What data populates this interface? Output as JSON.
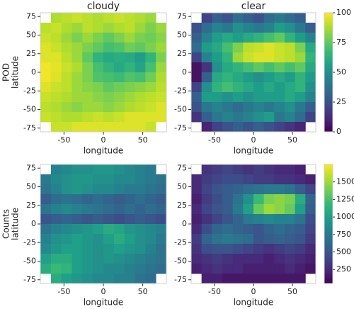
{
  "chart_data": [
    {
      "type": "heatmap",
      "title": "cloudy",
      "row_label": "POD",
      "x_label": "longitude",
      "y_label": "latitude",
      "colormap": "viridis",
      "xlim": [
        -80,
        80
      ],
      "ylim": [
        -80,
        80
      ],
      "xticks": [
        -50,
        0,
        50
      ],
      "yticks": [
        -75,
        -50,
        -25,
        0,
        25,
        50,
        75
      ],
      "zlim": [
        0,
        100
      ],
      "z": [
        [
          null,
          88,
          90,
          92,
          90,
          88,
          90,
          92,
          90,
          88,
          85,
          null
        ],
        [
          90,
          92,
          88,
          85,
          90,
          88,
          85,
          88,
          90,
          85,
          80,
          85
        ],
        [
          92,
          90,
          85,
          80,
          85,
          80,
          75,
          80,
          85,
          80,
          78,
          82
        ],
        [
          95,
          92,
          88,
          85,
          80,
          75,
          70,
          72,
          78,
          75,
          80,
          85
        ],
        [
          95,
          95,
          90,
          85,
          75,
          65,
          60,
          62,
          60,
          55,
          65,
          80
        ],
        [
          98,
          96,
          92,
          88,
          80,
          70,
          65,
          60,
          65,
          58,
          70,
          85
        ],
        [
          98,
          95,
          90,
          85,
          80,
          72,
          70,
          68,
          72,
          70,
          78,
          88
        ],
        [
          95,
          92,
          90,
          85,
          82,
          80,
          75,
          78,
          80,
          82,
          85,
          90
        ],
        [
          92,
          90,
          88,
          85,
          85,
          82,
          80,
          82,
          85,
          88,
          90,
          92
        ],
        [
          90,
          88,
          85,
          82,
          85,
          85,
          82,
          85,
          88,
          90,
          92,
          95
        ],
        [
          92,
          90,
          88,
          88,
          90,
          92,
          90,
          92,
          95,
          95,
          95,
          95
        ],
        [
          null,
          92,
          92,
          95,
          95,
          95,
          95,
          95,
          95,
          95,
          92,
          null
        ]
      ]
    },
    {
      "type": "heatmap",
      "title": "clear",
      "x_label": "longitude",
      "colormap": "viridis",
      "xlim": [
        -80,
        80
      ],
      "ylim": [
        -80,
        80
      ],
      "xticks": [
        -50,
        0,
        50
      ],
      "yticks": [
        -75,
        -50,
        -25,
        0,
        25,
        50,
        75
      ],
      "zlim": [
        0,
        100
      ],
      "colorbar_ticks": [
        0,
        25,
        50,
        75,
        100
      ],
      "z": [
        [
          null,
          20,
          30,
          25,
          35,
          30,
          25,
          35,
          40,
          35,
          30,
          null
        ],
        [
          25,
          35,
          45,
          40,
          50,
          45,
          40,
          45,
          55,
          50,
          40,
          30
        ],
        [
          30,
          45,
          55,
          60,
          55,
          60,
          65,
          70,
          75,
          65,
          55,
          45
        ],
        [
          35,
          55,
          60,
          70,
          80,
          90,
          92,
          95,
          92,
          90,
          80,
          60
        ],
        [
          20,
          45,
          55,
          65,
          85,
          92,
          95,
          95,
          92,
          90,
          85,
          65
        ],
        [
          5,
          15,
          50,
          60,
          65,
          70,
          75,
          70,
          75,
          70,
          75,
          60
        ],
        [
          5,
          30,
          60,
          65,
          60,
          55,
          50,
          55,
          60,
          55,
          65,
          55
        ],
        [
          20,
          50,
          65,
          70,
          65,
          60,
          55,
          60,
          55,
          60,
          65,
          50
        ],
        [
          30,
          55,
          55,
          50,
          55,
          50,
          55,
          55,
          55,
          60,
          55,
          45
        ],
        [
          25,
          40,
          45,
          40,
          35,
          40,
          45,
          40,
          45,
          50,
          40,
          30
        ],
        [
          15,
          30,
          40,
          45,
          40,
          45,
          50,
          55,
          40,
          45,
          35,
          20
        ],
        [
          null,
          10,
          20,
          25,
          30,
          25,
          30,
          25,
          20,
          15,
          10,
          null
        ]
      ]
    },
    {
      "type": "heatmap",
      "row_label": "Counts",
      "x_label": "longitude",
      "y_label": "latitude",
      "colormap": "viridis",
      "xlim": [
        -80,
        80
      ],
      "ylim": [
        -80,
        80
      ],
      "xticks": [
        -50,
        0,
        50
      ],
      "yticks": [
        -75,
        -50,
        -25,
        0,
        25,
        50,
        75
      ],
      "zlim": [
        50,
        1750
      ],
      "z": [
        [
          null,
          800,
          850,
          900,
          900,
          950,
          950,
          900,
          850,
          800,
          750,
          null
        ],
        [
          750,
          850,
          900,
          950,
          950,
          900,
          900,
          850,
          850,
          800,
          750,
          700
        ],
        [
          700,
          800,
          900,
          950,
          900,
          850,
          850,
          800,
          750,
          750,
          700,
          650
        ],
        [
          550,
          650,
          700,
          650,
          600,
          650,
          600,
          550,
          600,
          650,
          600,
          550
        ],
        [
          700,
          800,
          850,
          800,
          750,
          700,
          650,
          600,
          650,
          600,
          650,
          600
        ],
        [
          500,
          550,
          600,
          550,
          500,
          550,
          500,
          450,
          500,
          550,
          500,
          450
        ],
        [
          700,
          800,
          850,
          900,
          950,
          1000,
          1100,
          1050,
          950,
          900,
          850,
          800
        ],
        [
          800,
          900,
          950,
          1000,
          950,
          900,
          1000,
          1100,
          1000,
          900,
          850,
          750
        ],
        [
          850,
          950,
          1000,
          1000,
          950,
          900,
          950,
          1000,
          950,
          900,
          800,
          700
        ],
        [
          1000,
          1100,
          1100,
          1000,
          950,
          900,
          950,
          900,
          850,
          800,
          750,
          700
        ],
        [
          1100,
          1200,
          1150,
          1000,
          950,
          900,
          850,
          850,
          800,
          750,
          700,
          650
        ],
        [
          null,
          1100,
          1000,
          950,
          900,
          850,
          850,
          800,
          800,
          700,
          650,
          null
        ]
      ]
    },
    {
      "type": "heatmap",
      "x_label": "longitude",
      "colormap": "viridis",
      "xlim": [
        -80,
        80
      ],
      "ylim": [
        -80,
        80
      ],
      "xticks": [
        -50,
        0,
        50
      ],
      "yticks": [
        -75,
        -50,
        -25,
        0,
        25,
        50,
        75
      ],
      "zlim": [
        50,
        1750
      ],
      "colorbar_ticks": [
        250,
        500,
        750,
        1000,
        1250,
        1500
      ],
      "z": [
        [
          null,
          300,
          350,
          400,
          350,
          300,
          350,
          300,
          250,
          250,
          200,
          null
        ],
        [
          250,
          350,
          400,
          450,
          450,
          400,
          350,
          350,
          300,
          300,
          250,
          200
        ],
        [
          250,
          400,
          500,
          550,
          600,
          650,
          700,
          750,
          750,
          700,
          550,
          400
        ],
        [
          200,
          350,
          450,
          550,
          700,
          900,
          1200,
          1400,
          1450,
          1400,
          1100,
          600
        ],
        [
          250,
          400,
          500,
          550,
          750,
          1000,
          1350,
          1500,
          1450,
          1350,
          1000,
          550
        ],
        [
          200,
          300,
          400,
          500,
          600,
          750,
          800,
          850,
          800,
          800,
          700,
          450
        ],
        [
          250,
          450,
          600,
          650,
          600,
          550,
          500,
          600,
          650,
          600,
          550,
          400
        ],
        [
          350,
          600,
          700,
          750,
          700,
          650,
          500,
          550,
          600,
          550,
          500,
          350
        ],
        [
          300,
          450,
          500,
          500,
          450,
          400,
          350,
          300,
          350,
          400,
          350,
          250
        ],
        [
          250,
          300,
          350,
          300,
          250,
          250,
          250,
          200,
          250,
          300,
          250,
          200
        ],
        [
          200,
          250,
          300,
          250,
          250,
          200,
          200,
          200,
          200,
          250,
          200,
          150
        ],
        [
          null,
          200,
          200,
          150,
          150,
          150,
          150,
          150,
          150,
          150,
          150,
          null
        ]
      ]
    }
  ]
}
